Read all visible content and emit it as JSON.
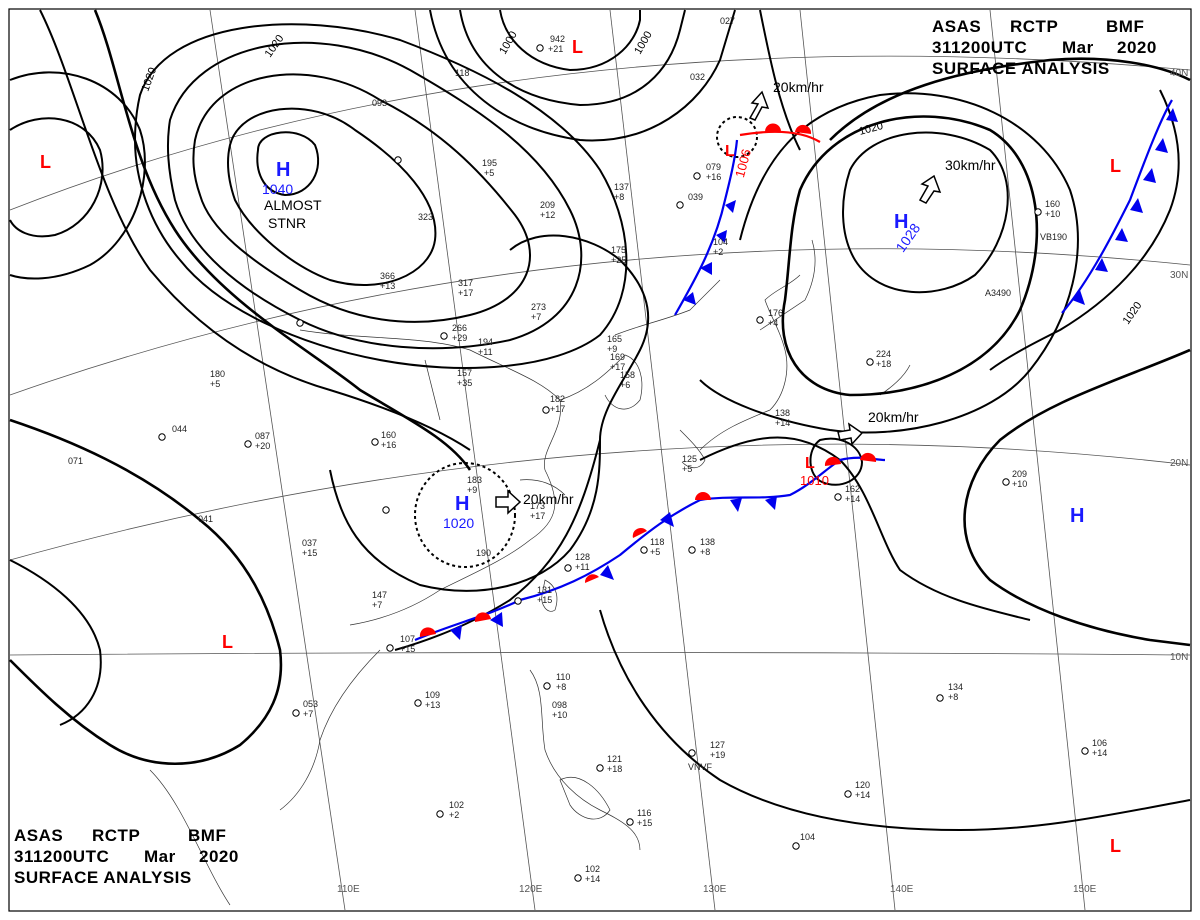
{
  "header": {
    "agency": "ASAS",
    "station": "RCTP",
    "code": "BMF",
    "datetime": "311200UTC",
    "month": "Mar",
    "year": "2020",
    "title": "SURFACE ANALYSIS"
  },
  "colors": {
    "high": "#1a1aff",
    "low": "#ff0000",
    "cold_front": "#0000ee",
    "warm_front": "#ff0000",
    "isobar": "#000000"
  },
  "longitudes": [
    "110E",
    "120E",
    "130E",
    "140E",
    "150E"
  ],
  "latitudes": [
    "40N",
    "30N",
    "20N",
    "10N"
  ],
  "isobar_labels": [
    "1020",
    "1020",
    "1000",
    "1000",
    "1020",
    "1020"
  ],
  "pressure_centers": [
    {
      "type": "H",
      "value": "1040",
      "note_line1": "ALMOST",
      "note_line2": "STNR"
    },
    {
      "type": "H",
      "value": "1028"
    },
    {
      "type": "H",
      "value": "1020"
    },
    {
      "type": "H",
      "value": ""
    },
    {
      "type": "L",
      "value": "1006"
    },
    {
      "type": "L",
      "value": "1010"
    },
    {
      "type": "L",
      "value": ""
    },
    {
      "type": "L",
      "value": ""
    },
    {
      "type": "L",
      "value": ""
    },
    {
      "type": "L",
      "value": ""
    },
    {
      "type": "L",
      "value": ""
    }
  ],
  "motion_vectors": [
    "20km/hr",
    "30km/hr",
    "20km/hr",
    "20km/hr"
  ],
  "station_values": [
    "942",
    "+21",
    "032",
    "027",
    "118",
    "093",
    "195",
    "+5",
    "137",
    "+8",
    "209",
    "+12",
    "175",
    "+25",
    "323",
    "366",
    "+13",
    "317",
    "+17",
    "273",
    "+7",
    "266",
    "+29",
    "194",
    "+11",
    "157",
    "+35",
    "182",
    "+17",
    "160",
    "+16",
    "087",
    "+20",
    "044",
    "180",
    "+5",
    "041",
    "071",
    "037",
    "+15",
    "183",
    "+9",
    "173",
    "+17",
    "190",
    "128",
    "+11",
    "131",
    "+15",
    "147",
    "+7",
    "107",
    "+15",
    "053",
    "+7",
    "109",
    "+13",
    "110",
    "+8",
    "098",
    "+10",
    "127",
    "+19",
    "121",
    "+18",
    "102",
    "+2",
    "116",
    "+15",
    "102",
    "+14",
    "120",
    "+14",
    "104",
    "134",
    "+8",
    "106",
    "+14",
    "209",
    "+10",
    "162",
    "+14",
    "224",
    "+18",
    "176",
    "+4",
    "160",
    "+10",
    "138",
    "+8",
    "118",
    "+5",
    "079",
    "+16",
    "039",
    "VB190",
    "A3490",
    "VNVF",
    "125",
    "+5",
    "158",
    "+6",
    "165",
    "+9",
    "138",
    "+14",
    "169",
    "+17",
    "104",
    "+2"
  ]
}
